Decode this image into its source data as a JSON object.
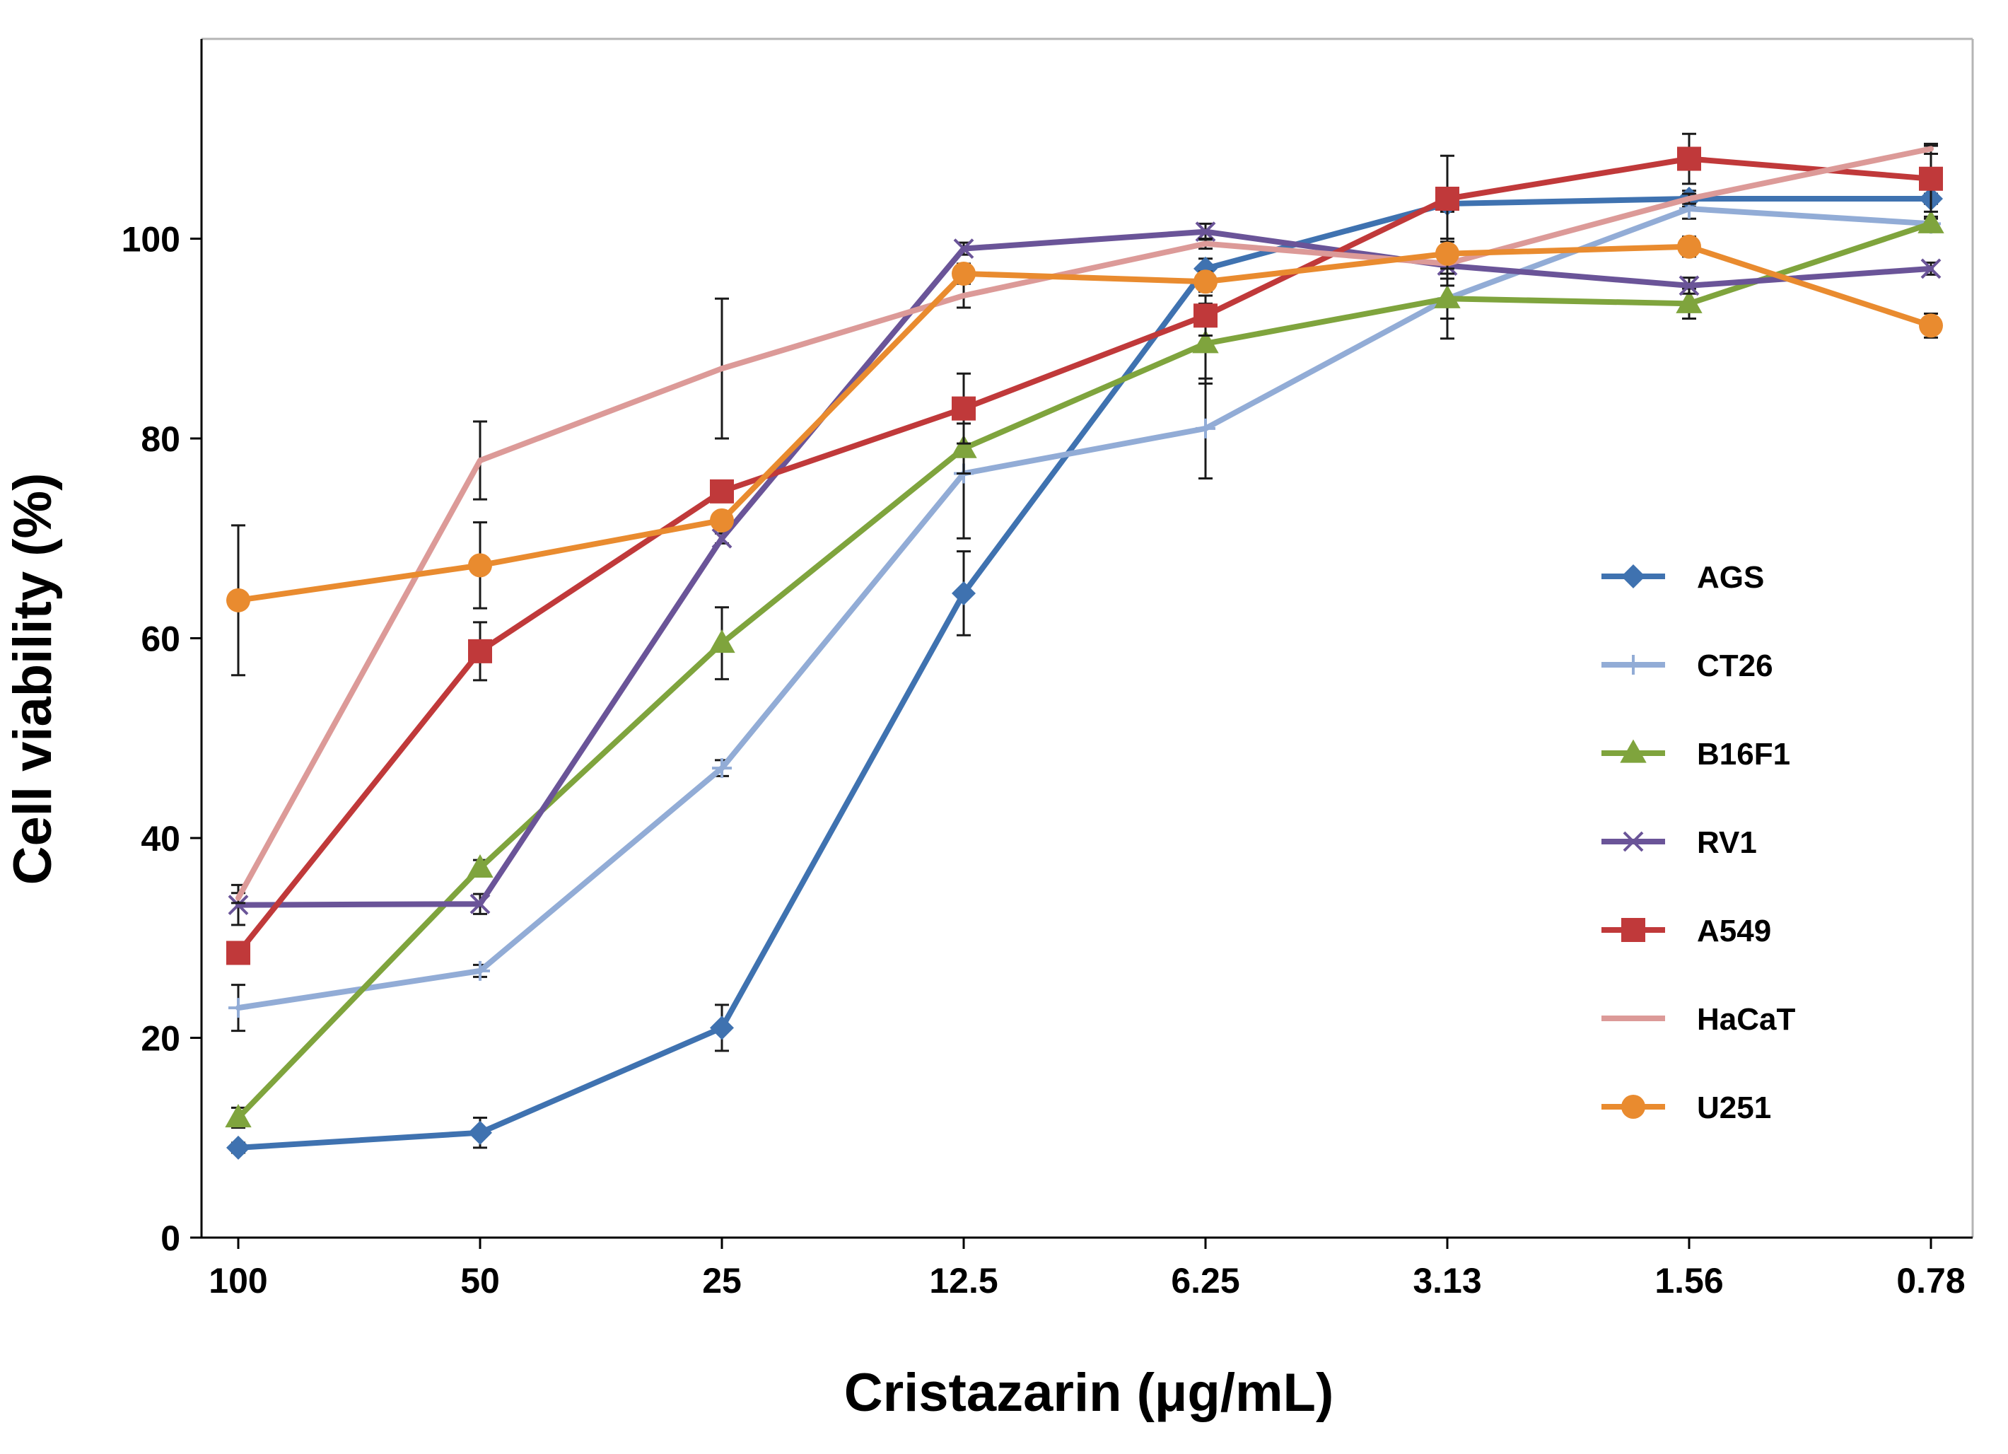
{
  "chart_data": {
    "type": "line",
    "xlabel": "Cristazarin (μg/mL)",
    "ylabel": "Cell viability (%)",
    "categories": [
      "100",
      "50",
      "25",
      "12.5",
      "6.25",
      "3.13",
      "1.56",
      "0.78"
    ],
    "ylim": [
      0,
      120
    ],
    "yticks": [
      "0",
      "20",
      "40",
      "60",
      "80",
      "100"
    ],
    "grid": false,
    "legend_position": "right",
    "series": [
      {
        "name": "AGS",
        "color": "#3f72b0",
        "marker": "diamond",
        "values": [
          9,
          10.5,
          21,
          64.5,
          97,
          103.5,
          104,
          104
        ],
        "errors": [
          0.5,
          1.5,
          2.3,
          4.2,
          1,
          0.8,
          0.8,
          0.5
        ]
      },
      {
        "name": "CT26",
        "color": "#92acd6",
        "marker": "plus",
        "values": [
          23,
          26.7,
          47,
          76.5,
          81,
          94,
          103,
          101.5
        ],
        "errors": [
          2.3,
          0.6,
          0.8,
          6.5,
          5,
          4,
          1,
          0.7
        ]
      },
      {
        "name": "B16F1",
        "color": "#7fa43d",
        "marker": "triangle",
        "values": [
          12,
          37,
          59.5,
          79,
          89.5,
          94,
          93.5,
          101.5
        ],
        "errors": [
          1,
          0.8,
          3.6,
          2.5,
          4,
          2,
          1.5,
          0.5
        ]
      },
      {
        "name": "RV1",
        "color": "#6a5498",
        "marker": "x",
        "values": [
          33.3,
          33.4,
          70,
          99,
          100.7,
          97.3,
          95.3,
          97
        ],
        "errors": [
          2,
          1,
          0.5,
          0.6,
          0.8,
          2,
          0.8,
          0.6
        ]
      },
      {
        "name": "A549",
        "color": "#c0393a",
        "marker": "square",
        "values": [
          28.5,
          58.7,
          74.7,
          83,
          92.3,
          104,
          108,
          106
        ],
        "errors": [
          1,
          2.9,
          0.5,
          3.5,
          2,
          4.3,
          2.5,
          3.3
        ]
      },
      {
        "name": "HaCaT",
        "color": "#dc9a98",
        "marker": "none",
        "values": [
          34,
          77.8,
          87,
          94.3,
          99.5,
          97.5,
          104,
          109
        ],
        "errors": [
          0.5,
          3.9,
          7,
          1.2,
          0.5,
          1,
          0.5,
          0.5
        ]
      },
      {
        "name": "U251",
        "color": "#e98b2f",
        "marker": "circle",
        "values": [
          63.8,
          67.3,
          71.8,
          96.5,
          95.7,
          98.5,
          99.2,
          91.3
        ],
        "errors": [
          7.5,
          4.3,
          0.5,
          1,
          1,
          1.5,
          1,
          1.2
        ]
      }
    ]
  }
}
